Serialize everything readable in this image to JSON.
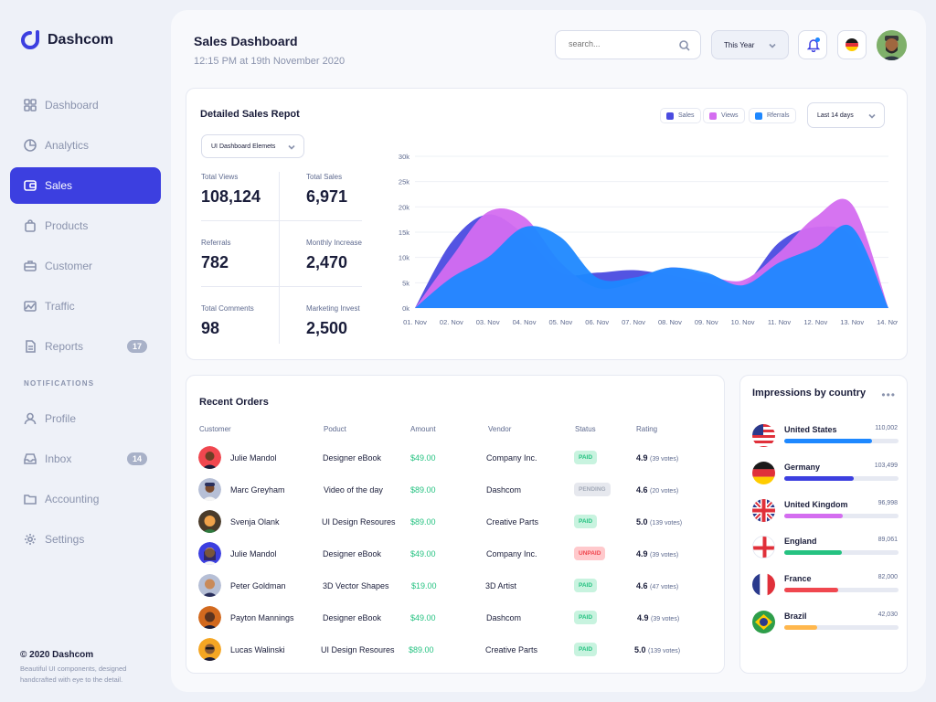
{
  "app": {
    "name": "Dashcom"
  },
  "sidebar": {
    "items": [
      {
        "label": "Dashboard",
        "icon": "grid-icon"
      },
      {
        "label": "Analytics",
        "icon": "pie-chart-icon"
      },
      {
        "label": "Sales",
        "icon": "wallet-icon",
        "active": true
      },
      {
        "label": "Products",
        "icon": "bag-icon"
      },
      {
        "label": "Customer",
        "icon": "briefcase-icon"
      },
      {
        "label": "Traffic",
        "icon": "image-chart-icon"
      },
      {
        "label": "Reports",
        "icon": "document-icon",
        "badge": "17"
      }
    ],
    "section_label": "NOTIFICATIONS",
    "notification_items": [
      {
        "label": "Profile",
        "icon": "user-icon"
      },
      {
        "label": "Inbox",
        "icon": "inbox-icon",
        "badge": "14"
      },
      {
        "label": "Accounting",
        "icon": "folder-icon"
      },
      {
        "label": "Settings",
        "icon": "gear-icon"
      }
    ],
    "footer_title": "© 2020 Dashcom",
    "footer_text": "Beautiful UI components, designed handcrafted with eye to the detail."
  },
  "header": {
    "title": "Sales Dashboard",
    "subtitle": "12:15 PM at 19th November 2020",
    "search_placeholder": "search...",
    "period": "This Year"
  },
  "sales_report": {
    "title": "Detailed Sales Repot",
    "source_select": "UI Dashboard Elemets",
    "range_select": "Last 14 days",
    "stats": [
      {
        "label": "Total Views",
        "value": "108,124"
      },
      {
        "label": "Total Sales",
        "value": "6,971"
      },
      {
        "label": "Referrals",
        "value": "782"
      },
      {
        "label": "Monthly Increase",
        "value": "2,470"
      },
      {
        "label": "Total Comments",
        "value": "98"
      },
      {
        "label": "Marketing Invest",
        "value": "2,500"
      }
    ]
  },
  "chart_data": {
    "type": "area",
    "title": "",
    "x": [
      "01. Nov",
      "02. Nov",
      "03. Nov",
      "04. Nov",
      "05. Nov",
      "06. Nov",
      "07. Nov",
      "08. Nov",
      "09. Nov",
      "10. Nov",
      "11. Nov",
      "12. Nov",
      "13. Nov",
      "14. Nov"
    ],
    "yticks": [
      "0k",
      "5k",
      "10k",
      "15k",
      "20k",
      "25k",
      "30k"
    ],
    "ylim": [
      0,
      30000
    ],
    "legend": "top-right",
    "grid": true,
    "series": [
      {
        "name": "Sales",
        "color": "#4a4be0",
        "values": [
          0,
          13000,
          18500,
          14500,
          7000,
          7000,
          7500,
          6500,
          5000,
          4500,
          13000,
          16000,
          14000,
          0
        ]
      },
      {
        "name": "Views",
        "color": "#d46df0",
        "values": [
          0,
          10000,
          19000,
          18000,
          9000,
          4000,
          5000,
          8000,
          6500,
          5500,
          11000,
          18000,
          20500,
          0
        ]
      },
      {
        "name": "Rferrals",
        "color": "#1e88ff",
        "values": [
          0,
          6000,
          10000,
          16000,
          14000,
          6000,
          6000,
          8000,
          7000,
          4500,
          9000,
          12000,
          16000,
          0
        ]
      }
    ]
  },
  "orders": {
    "title": "Recent Orders",
    "columns": [
      "Customer",
      "Poduct",
      "Amount",
      "Vendor",
      "Status",
      "Rating"
    ],
    "rows": [
      {
        "customer": "Julie Mandol",
        "product": "Designer eBook",
        "amount": "$49.00",
        "vendor": "Company Inc.",
        "status": "PAID",
        "rating": "4.9",
        "votes": "(39 votes)"
      },
      {
        "customer": "Marc Greyham",
        "product": "Video of the day",
        "amount": "$89.00",
        "vendor": "Dashcom",
        "status": "PENDING",
        "rating": "4.6",
        "votes": "(20 votes)"
      },
      {
        "customer": "Svenja Olank",
        "product": "UI Design Resoures",
        "amount": "$89.00",
        "vendor": "Creative Parts",
        "status": "PAID",
        "rating": "5.0",
        "votes": "(139 votes)"
      },
      {
        "customer": "Julie Mandol",
        "product": "Designer eBook",
        "amount": "$49.00",
        "vendor": "Company Inc.",
        "status": "UNPAID",
        "rating": "4.9",
        "votes": "(39 votes)"
      },
      {
        "customer": "Peter Goldman",
        "product": "3D Vector Shapes",
        "amount": "$19.00",
        "vendor": "3D Artist",
        "status": "PAID",
        "rating": "4.6",
        "votes": "(47 votes)"
      },
      {
        "customer": "Payton Mannings",
        "product": "Designer eBook",
        "amount": "$49.00",
        "vendor": "Dashcom",
        "status": "PAID",
        "rating": "4.9",
        "votes": "(39 votes)"
      },
      {
        "customer": "Lucas Walinski",
        "product": "UI Design Resoures",
        "amount": "$89.00",
        "vendor": "Creative Parts",
        "status": "PAID",
        "rating": "5.0",
        "votes": "(139 votes)"
      }
    ]
  },
  "impressions": {
    "title": "Impressions by country",
    "countries": [
      {
        "name": "United States",
        "value": "110,002",
        "fraction": 0.77,
        "color": "#1e88ff",
        "flag": "us-flag-icon"
      },
      {
        "name": "Germany",
        "value": "103,499",
        "fraction": 0.61,
        "color": "#3c3fe0",
        "flag": "de-flag-icon"
      },
      {
        "name": "United Kingdom",
        "value": "96,998",
        "fraction": 0.51,
        "color": "#d46df0",
        "flag": "uk-flag-icon"
      },
      {
        "name": "England",
        "value": "89,061",
        "fraction": 0.5,
        "color": "#25c281",
        "flag": "england-flag-icon"
      },
      {
        "name": "France",
        "value": "82,000",
        "fraction": 0.47,
        "color": "#f0474f",
        "flag": "fr-flag-icon"
      },
      {
        "name": "Brazil",
        "value": "42,030",
        "fraction": 0.29,
        "color": "#ffb74d",
        "flag": "br-flag-icon"
      }
    ]
  }
}
